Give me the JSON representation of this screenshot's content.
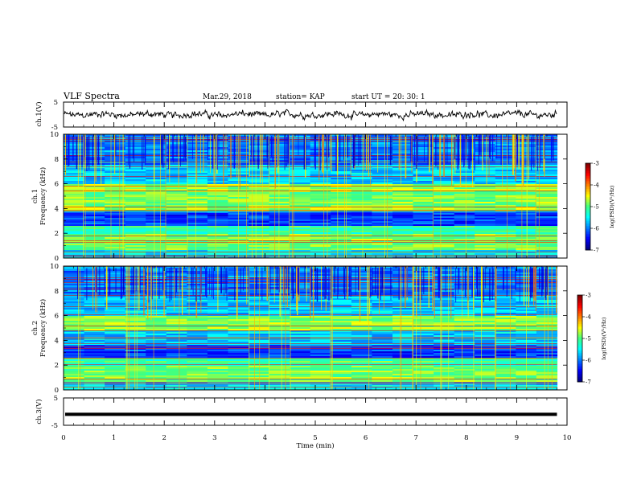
{
  "header": {
    "title": "VLF Spectra",
    "date": "Mar.29, 2018",
    "station": "station= KAP",
    "start_ut": "start UT =  20: 30: 1"
  },
  "chart_data": [
    {
      "type": "line",
      "panel": "ch1-waveform",
      "ylabel": "ch.1(V)",
      "ylim": [
        -5,
        5
      ],
      "yticks": [
        "5",
        "-5"
      ],
      "xlim": [
        0,
        10
      ],
      "data_end_min": 9.8,
      "description_values": {
        "mean": 0,
        "amplitude_approx": 1.5
      }
    },
    {
      "type": "heatmap",
      "panel": "ch1-spectrogram",
      "ylabel": "ch.1\nFrequency (kHz)",
      "ylabel_line1": "ch.1",
      "ylabel_line2": "Frequency (kHz)",
      "ylim": [
        0,
        10
      ],
      "yticks": [
        "0",
        "2",
        "4",
        "6",
        "8",
        "10"
      ],
      "xlim": [
        0,
        10
      ],
      "data_end_min": 9.8,
      "colorbar": {
        "label": "log(PSD)(V²/Hz)",
        "range": [
          -7,
          -3
        ],
        "ticks": [
          "-3",
          "-4",
          "-5",
          "-6",
          "-7"
        ]
      }
    },
    {
      "type": "heatmap",
      "panel": "ch2-spectrogram",
      "ylabel_line1": "ch.2",
      "ylabel_line2": "Frequency (kHz)",
      "ylim": [
        0,
        10
      ],
      "yticks": [
        "0",
        "2",
        "4",
        "6",
        "8",
        "10"
      ],
      "xlim": [
        0,
        10
      ],
      "data_end_min": 9.8,
      "colorbar": {
        "label": "log(PSD)(V²/Hz)",
        "range": [
          -7,
          -3
        ],
        "ticks": [
          "-3",
          "-4",
          "-5",
          "-6",
          "-7"
        ]
      }
    },
    {
      "type": "line",
      "panel": "ch3-waveform",
      "ylabel": "ch.3(V)",
      "ylim": [
        -5,
        5
      ],
      "yticks": [
        "5",
        "-5"
      ],
      "xlim": [
        0,
        10
      ],
      "constant_value": -1,
      "data_end_min": 9.8
    }
  ],
  "xaxis": {
    "label": "Time (min)",
    "ticks": [
      "0",
      "1",
      "2",
      "3",
      "4",
      "5",
      "6",
      "7",
      "8",
      "9",
      "10"
    ]
  },
  "colors": {
    "colormap": [
      "#00007f",
      "#0000ff",
      "#0080ff",
      "#00ffff",
      "#40ff80",
      "#ffff00",
      "#ff8000",
      "#ff0000",
      "#7f0000"
    ],
    "line": "#000000"
  }
}
